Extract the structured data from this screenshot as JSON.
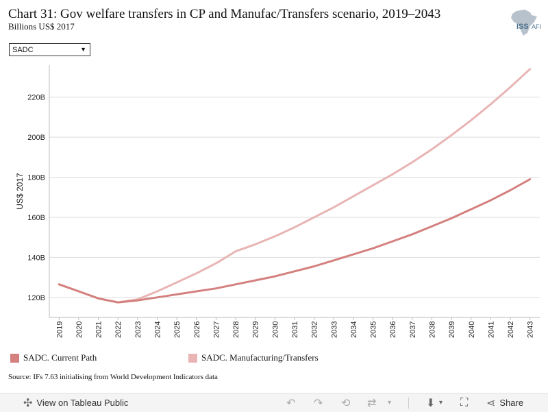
{
  "title": "Chart 31: Gov welfare transfers in CP and Manufac/Transfers scenario, 2019–2043",
  "subtitle": "Billions US$ 2017",
  "logo": {
    "text": "ISS",
    "accent_text": "AFI"
  },
  "filter": {
    "selected": "SADC"
  },
  "source": "Source: IFs 7.63 initialising from World Development Indicators data",
  "toolbar": {
    "view_label": "View on Tableau Public",
    "share_label": "Share"
  },
  "chart_data": {
    "type": "line",
    "ylabel": "US$ 2017",
    "ylim": [
      110,
      236
    ],
    "yticks": [
      120,
      140,
      160,
      180,
      200,
      220
    ],
    "ytick_labels": [
      "120B",
      "140B",
      "160B",
      "180B",
      "200B",
      "220B"
    ],
    "grid": true,
    "legend_position": "bottom",
    "x": [
      "2019",
      "2020",
      "2021",
      "2022",
      "2023",
      "2024",
      "2025",
      "2026",
      "2027",
      "2028",
      "2029",
      "2030",
      "2031",
      "2032",
      "2033",
      "2034",
      "2035",
      "2036",
      "2037",
      "2038",
      "2039",
      "2040",
      "2041",
      "2042",
      "2043"
    ],
    "series": [
      {
        "name": "SADC. Current Path",
        "color": "#d4807e",
        "values": [
          126.5,
          123,
          119.5,
          117.5,
          118.5,
          120,
          121.5,
          123,
          124.5,
          126.5,
          128.5,
          130.5,
          133,
          135.5,
          138.5,
          141.5,
          144.5,
          148,
          151.5,
          155.5,
          159.5,
          164,
          168.5,
          173.5,
          179
        ]
      },
      {
        "name": "SADC. Manufacturing/Transfers",
        "color": "#e8b5b4",
        "values": [
          126.5,
          123,
          119.5,
          117.5,
          119,
          123,
          127.5,
          132,
          137,
          143,
          146.5,
          150.5,
          155,
          160,
          165,
          170.5,
          176,
          181.5,
          187.5,
          194,
          201,
          208.5,
          216.5,
          225,
          234
        ]
      }
    ]
  }
}
